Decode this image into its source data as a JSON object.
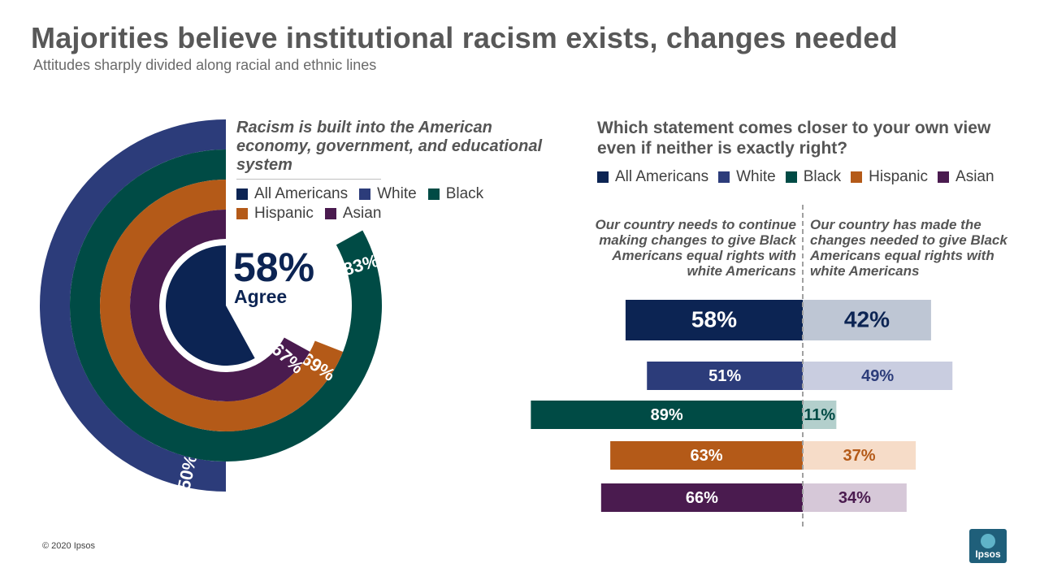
{
  "title": "Majorities believe institutional racism exists, changes needed",
  "subtitle": "Attitudes sharply divided along racial and ethnic lines",
  "colors": {
    "all_americans": "#0c2453",
    "white": "#2c3c7a",
    "black": "#004b45",
    "hispanic": "#b45a18",
    "asian": "#4a1b4f"
  },
  "chart_data": [
    {
      "type": "radial-bar",
      "title": "Racism is built into the American economy, government, and educational system",
      "center_value": "58%",
      "center_label": "Agree",
      "legend": [
        "All Americans",
        "White",
        "Black",
        "Hispanic",
        "Asian"
      ],
      "series": [
        {
          "name": "All Americans",
          "value": 58,
          "label": ""
        },
        {
          "name": "White",
          "value": 50,
          "label": "50%"
        },
        {
          "name": "Black",
          "value": 83,
          "label": "83%"
        },
        {
          "name": "Hispanic",
          "value": 69,
          "label": "69%"
        },
        {
          "name": "Asian",
          "value": 67,
          "label": "67%"
        }
      ]
    },
    {
      "type": "bar",
      "title": "Which statement comes closer to your own view even if neither is exactly right?",
      "legend": [
        "All Americans",
        "White",
        "Black",
        "Hispanic",
        "Asian"
      ],
      "left_statement": "Our country needs to continue making changes to give Black Americans equal rights with white Americans",
      "right_statement": "Our country has made the changes needed to give Black Americans equal rights with white Americans",
      "categories": [
        "All Americans",
        "White",
        "Black",
        "Hispanic",
        "Asian"
      ],
      "series": [
        {
          "name": "Our country needs to continue making changes to give Black Americans equal rights with white Americans",
          "values": [
            58,
            51,
            89,
            63,
            66
          ],
          "labels": [
            "58%",
            "51%",
            "89%",
            "63%",
            "66%"
          ]
        },
        {
          "name": "Our country has made the changes needed to give Black Americans equal rights with white Americans",
          "values": [
            42,
            49,
            11,
            37,
            34
          ],
          "labels": [
            "42%",
            "49%",
            "11%",
            "37%",
            "34%"
          ]
        }
      ]
    }
  ],
  "footer": "© 2020 Ipsos",
  "logo_text": "Ipsos"
}
